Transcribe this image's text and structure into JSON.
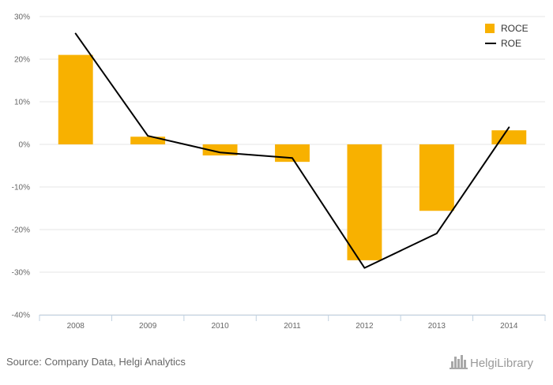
{
  "chart_data": {
    "type": "bar",
    "categories": [
      "2008",
      "2009",
      "2010",
      "2011",
      "2012",
      "2013",
      "2014"
    ],
    "series": [
      {
        "name": "ROCE",
        "kind": "bar",
        "color": "#F8B100",
        "values": [
          21,
          1.8,
          -2.6,
          -4.1,
          -27.2,
          -15.6,
          3.3
        ]
      },
      {
        "name": "ROE",
        "kind": "line",
        "color": "#000000",
        "values": [
          26,
          2.0,
          -1.9,
          -3.2,
          -29,
          -20.9,
          4.0
        ]
      }
    ],
    "ylim": [
      -40,
      30
    ],
    "yticks": [
      -40,
      -30,
      -20,
      -10,
      0,
      10,
      20,
      30
    ],
    "ytick_labels": [
      "-40%",
      "-30%",
      "-20%",
      "-10%",
      "0%",
      "10%",
      "20%",
      "30%"
    ],
    "grid": true,
    "legend_position": "top-right"
  },
  "footer": {
    "source": "Source: Company Data, Helgi Analytics",
    "brand": "HelgiLibrary"
  },
  "colors": {
    "grid": "#E6E6E6",
    "axis": "#C0D0E0"
  },
  "icons": {
    "brand_logo": "helgi-library-logo-icon"
  }
}
